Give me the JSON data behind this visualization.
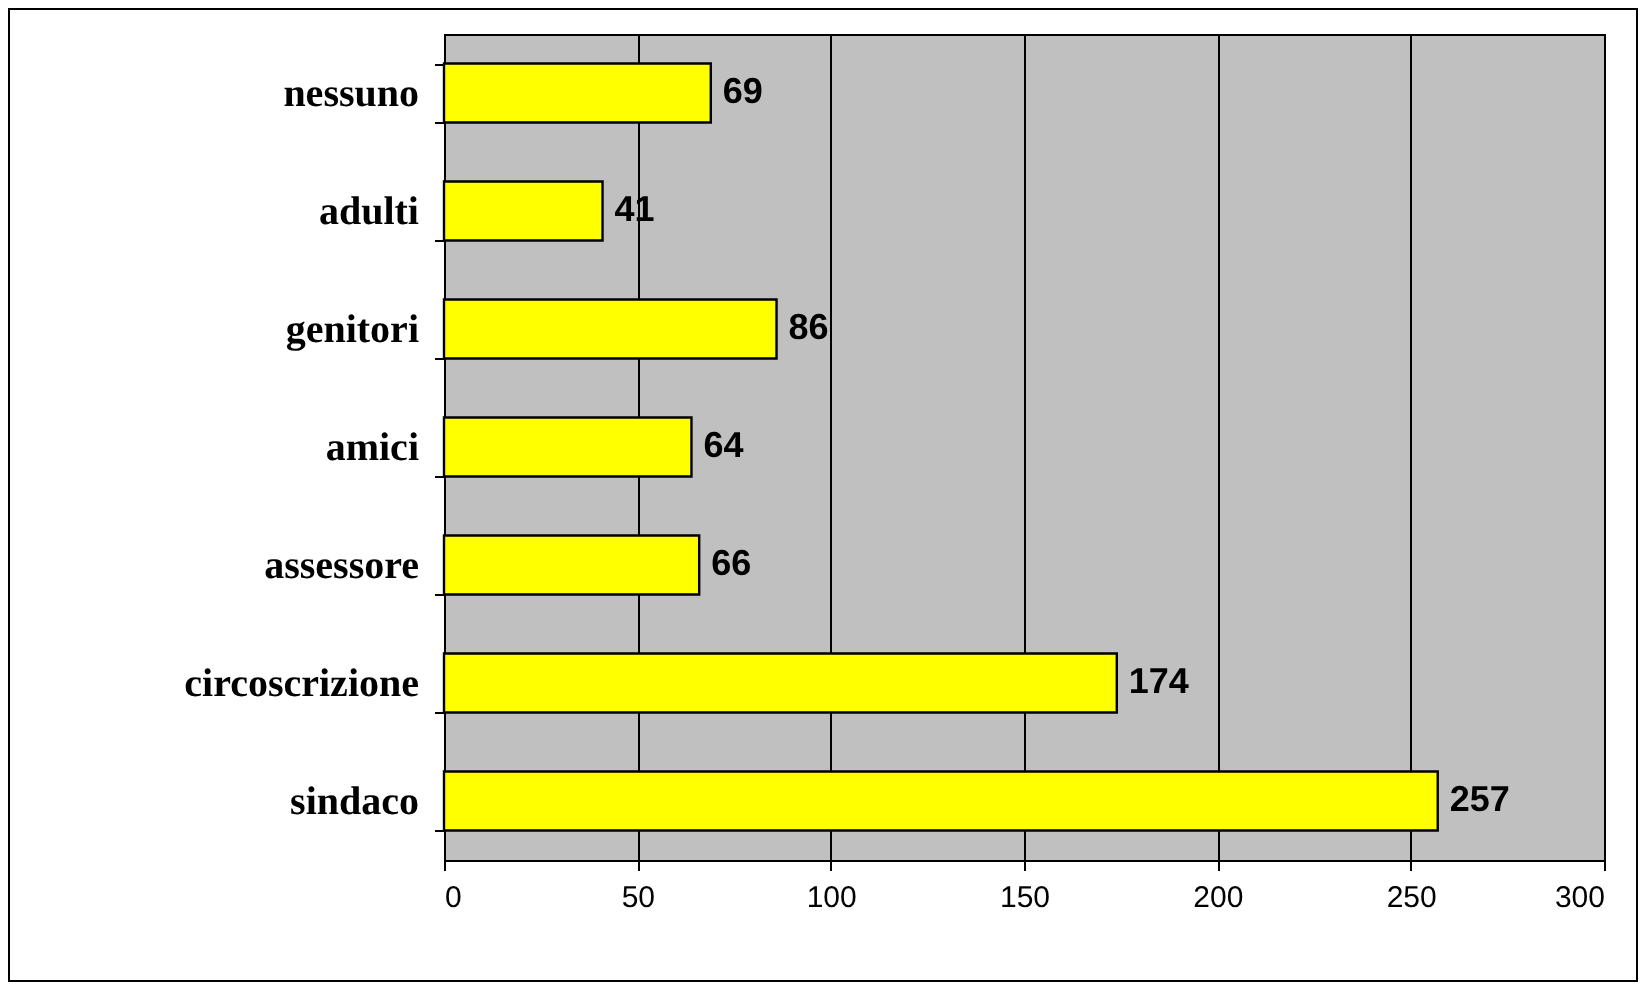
{
  "chart_data": {
    "type": "bar",
    "orientation": "horizontal",
    "categories": [
      "nessuno",
      "adulti",
      "genitori",
      "amici",
      "assessore",
      "circoscrizione",
      "sindaco"
    ],
    "values": [
      69,
      41,
      86,
      64,
      66,
      174,
      257
    ],
    "color": "#ffff00",
    "xlim": [
      0,
      300
    ],
    "xticks": [
      0,
      50,
      100,
      150,
      200,
      250,
      300
    ],
    "grid": "x",
    "data_labels": true
  }
}
